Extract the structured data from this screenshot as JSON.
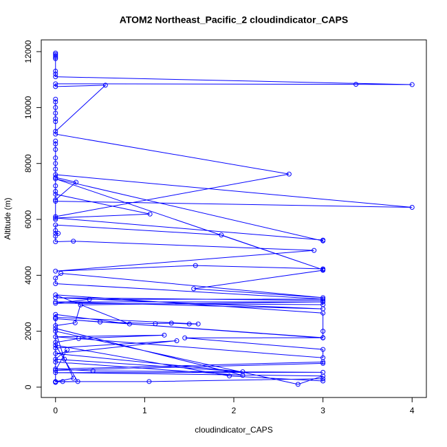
{
  "chart_data": {
    "type": "line",
    "title": "ATOM2 Northeast_Pacific_2 cloudindicator_CAPS",
    "x_label": "cloudindicator_CAPS",
    "y_label": "Altitude (m)",
    "color": "#0000ff",
    "markers": true,
    "xlim": [
      -0.16,
      4.16
    ],
    "ylim": [
      -370,
      12420
    ],
    "xticks": [
      0,
      1,
      2,
      3,
      4
    ],
    "yticks": [
      0,
      2000,
      4000,
      6000,
      8000,
      10000,
      12000
    ],
    "x": [
      0,
      0,
      0,
      0,
      0,
      0,
      0,
      0,
      4,
      3.37,
      0,
      0,
      0.56,
      0,
      0,
      0,
      0,
      0,
      0,
      0,
      0,
      2.62,
      0,
      0,
      0,
      4,
      0,
      0,
      0.23,
      0,
      0,
      0,
      0,
      0,
      0,
      0,
      0,
      0,
      0,
      1.06,
      0,
      3,
      3,
      0,
      3,
      1.86,
      0,
      0,
      0,
      0.03,
      0,
      0,
      0.2,
      2.9,
      0,
      1.57,
      3,
      3,
      1.55,
      3,
      0.06,
      0,
      0,
      3,
      0.38,
      0,
      3,
      3,
      0,
      3,
      0,
      3,
      0.28,
      0.22,
      0,
      0,
      0.5,
      1.12,
      1.3,
      1.5,
      1.6,
      0,
      0,
      0.83,
      0,
      3,
      3,
      3,
      0,
      3,
      1.45,
      3,
      3,
      0,
      1.22,
      0.26,
      0,
      0,
      1.36,
      0,
      2.1,
      0,
      0.13,
      0,
      3,
      3,
      0,
      0.42,
      3,
      0,
      3,
      2.72,
      0,
      0.1,
      0.2,
      0,
      0.08,
      1.05,
      3,
      3,
      1.95,
      0,
      0.25,
      0,
      0,
      0,
      0,
      2.1,
      0
    ],
    "values": [
      11950,
      11900,
      11850,
      11800,
      11750,
      11300,
      11200,
      11100,
      10820,
      10830,
      10850,
      10750,
      10800,
      9150,
      10300,
      10200,
      10000,
      9800,
      9600,
      9500,
      9050,
      7620,
      6100,
      6000,
      7600,
      6430,
      6650,
      7500,
      7330,
      6700,
      8800,
      8700,
      8500,
      8200,
      8000,
      7800,
      7200,
      7000,
      6900,
      6190,
      6050,
      5260,
      5230,
      7450,
      4200,
      5440,
      5800,
      5600,
      5500,
      5500,
      5400,
      5200,
      5220,
      4890,
      4150,
      4350,
      4230,
      4180,
      3520,
      3200,
      4070,
      3900,
      3700,
      3150,
      3140,
      3000,
      2950,
      3100,
      3200,
      2800,
      3050,
      3050,
      2940,
      2300,
      2200,
      2450,
      2330,
      2270,
      2290,
      2260,
      2260,
      2500,
      2600,
      2260,
      3300,
      2650,
      2000,
      1760,
      2450,
      1770,
      1760,
      1350,
      1050,
      1800,
      1860,
      1740,
      1600,
      1400,
      1660,
      1200,
      550,
      1000,
      1340,
      600,
      850,
      900,
      650,
      580,
      530,
      520,
      400,
      100,
      2000,
      1000,
      320,
      200,
      200,
      200,
      300,
      220,
      400,
      1500,
      200,
      190,
      180,
      170,
      2100,
      420,
      900
    ]
  }
}
